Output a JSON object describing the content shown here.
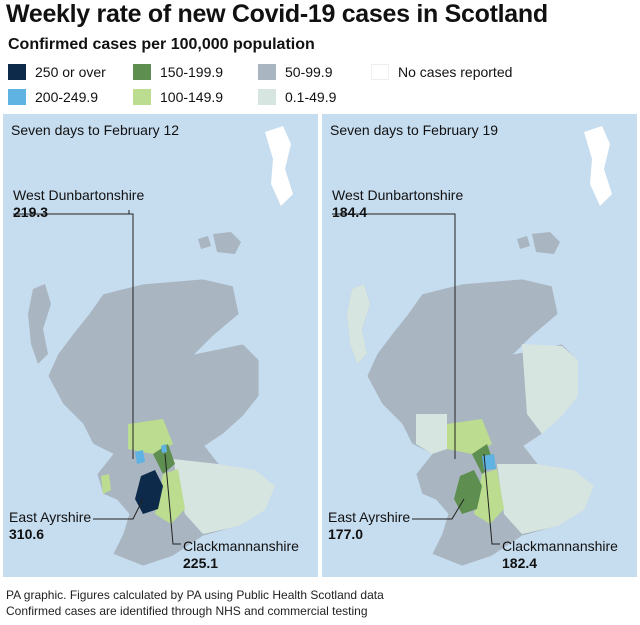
{
  "header": {
    "title": "Weekly rate of new Covid-19 cases in Scotland",
    "subtitle": "Confirmed cases per 100,000 population"
  },
  "legend": [
    "250 or over",
    "200-249.9",
    "150-199.9",
    "100-149.9",
    "50-99.9",
    "0.1-49.9",
    "No cases reported"
  ],
  "panels": [
    {
      "title": "Seven days to February 12",
      "labels": [
        {
          "name": "West Dunbartonshire",
          "value": "219.3"
        },
        {
          "name": "East Ayrshire",
          "value": "310.6"
        },
        {
          "name": "Clackmannanshire",
          "value": "225.1"
        }
      ]
    },
    {
      "title": "Seven days to February 19",
      "labels": [
        {
          "name": "West Dunbartonshire",
          "value": "184.4"
        },
        {
          "name": "East Ayrshire",
          "value": "177.0"
        },
        {
          "name": "Clackmannanshire",
          "value": "182.4"
        }
      ]
    }
  ],
  "footer": [
    "PA graphic. Figures calculated by PA using Public Health Scotland data",
    "Confirmed cases are identified through NHS and commercial testing"
  ]
}
